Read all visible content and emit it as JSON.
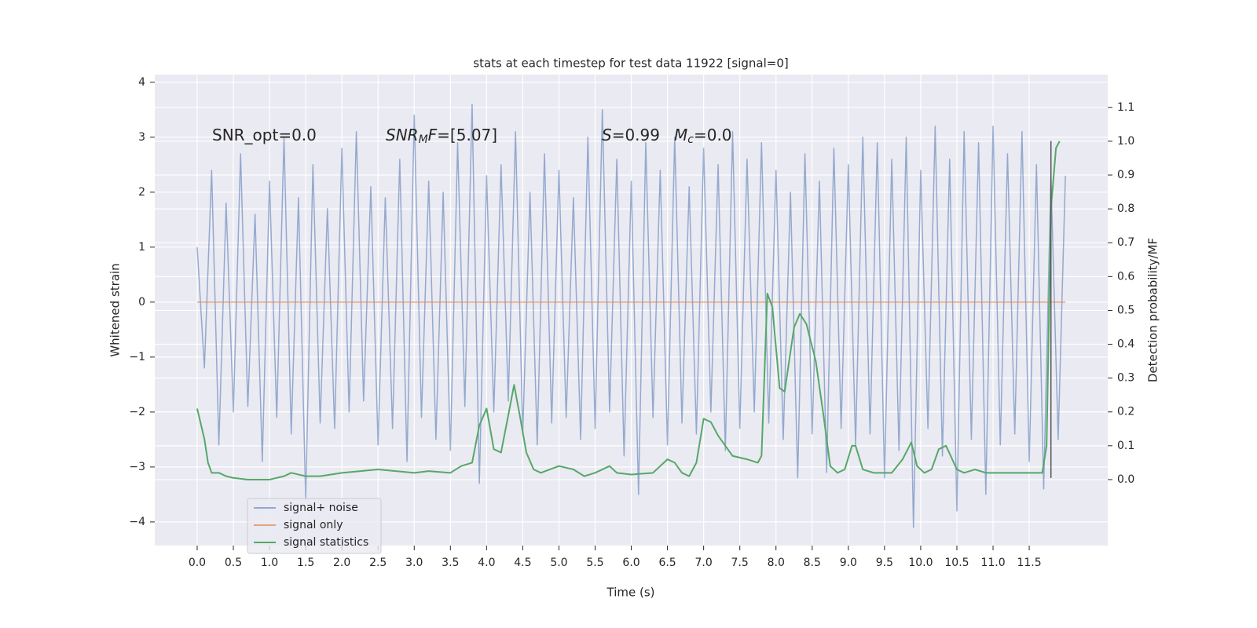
{
  "chart_data": {
    "type": "line",
    "title": "stats at each timestep for test data 11922 [signal=0]",
    "x_label": "Time (s)",
    "y_label": "Whitened strain",
    "y2_label": "Detection probability/MF",
    "xlim": [
      -0.586,
      12.585
    ],
    "ylim": [
      -4.43,
      4.14
    ],
    "y2lim": [
      -0.195,
      1.197
    ],
    "grid": true,
    "legend": "lower left",
    "xticks": [
      {
        "value": 0,
        "label": "0.0"
      },
      {
        "value": 0.5,
        "label": "0.5"
      },
      {
        "value": 1,
        "label": "1.0"
      },
      {
        "value": 1.5,
        "label": "1.5"
      },
      {
        "value": 2,
        "label": "2.0"
      },
      {
        "value": 2.5,
        "label": "2.5"
      },
      {
        "value": 3,
        "label": "3.0"
      },
      {
        "value": 3.5,
        "label": "3.5"
      },
      {
        "value": 4,
        "label": "4.0"
      },
      {
        "value": 4.5,
        "label": "4.5"
      },
      {
        "value": 5,
        "label": "5.0"
      },
      {
        "value": 5.5,
        "label": "5.5"
      },
      {
        "value": 6,
        "label": "6.0"
      },
      {
        "value": 6.5,
        "label": "6.5"
      },
      {
        "value": 7,
        "label": "7.0"
      },
      {
        "value": 7.5,
        "label": "7.5"
      },
      {
        "value": 8,
        "label": "8.0"
      },
      {
        "value": 8.5,
        "label": "8.5"
      },
      {
        "value": 9,
        "label": "9.0"
      },
      {
        "value": 9.5,
        "label": "9.5"
      },
      {
        "value": 10,
        "label": "10.0"
      },
      {
        "value": 10.5,
        "label": "10.5"
      },
      {
        "value": 11,
        "label": "11.0"
      },
      {
        "value": 11.5,
        "label": "11.5"
      }
    ],
    "yticks": [
      {
        "value": -4,
        "label": "−4"
      },
      {
        "value": -3,
        "label": "−3"
      },
      {
        "value": -2,
        "label": "−2"
      },
      {
        "value": -1,
        "label": "−1"
      },
      0,
      1,
      2,
      3,
      4
    ],
    "y2ticks": [
      {
        "value": 0,
        "label": "0.0"
      },
      {
        "value": 0.1,
        "label": "0.1"
      },
      {
        "value": 0.2,
        "label": "0.2"
      },
      {
        "value": 0.3,
        "label": "0.3"
      },
      {
        "value": 0.4,
        "label": "0.4"
      },
      {
        "value": 0.5,
        "label": "0.5"
      },
      {
        "value": 0.6,
        "label": "0.6"
      },
      {
        "value": 0.7,
        "label": "0.7"
      },
      {
        "value": 0.8,
        "label": "0.8"
      },
      {
        "value": 0.9,
        "label": "0.9"
      },
      {
        "value": 1,
        "label": "1.0"
      },
      {
        "value": 1.1,
        "label": "1.1"
      }
    ],
    "annotations": [
      {
        "parts": [
          {
            "text": "SNR_opt=0.0"
          }
        ]
      },
      {
        "parts": [
          {
            "text": "SNR",
            "style": "italic"
          },
          {
            "text": "M",
            "style": "sub"
          },
          {
            "text": "F",
            "style": "italic"
          },
          {
            "text": "=[5.07]"
          }
        ]
      },
      {
        "parts": [
          {
            "text": "S",
            "style": "italic"
          },
          {
            "text": "=0.99"
          }
        ]
      },
      {
        "parts": [
          {
            "text": "M",
            "style": "italic"
          },
          {
            "text": "c",
            "style": "sub"
          },
          {
            "text": "=0.0"
          }
        ]
      }
    ],
    "marker_line": {
      "x": 11.8,
      "y": [
        -3.2,
        2.93
      ],
      "color": "#555555"
    },
    "series": [
      {
        "name": "signal+ noise",
        "color": "#4c72b0",
        "alpha": 0.55,
        "axis": "y",
        "x": [
          0,
          0.1,
          0.2,
          0.3,
          0.4,
          0.5,
          0.6,
          0.7,
          0.8,
          0.9,
          1,
          1.1,
          1.2,
          1.3,
          1.4,
          1.5,
          1.6,
          1.7,
          1.8,
          1.9,
          2,
          2.1,
          2.2,
          2.3,
          2.4,
          2.5,
          2.6,
          2.7,
          2.8,
          2.9,
          3,
          3.1,
          3.2,
          3.3,
          3.4,
          3.5,
          3.6,
          3.7,
          3.8,
          3.9,
          4,
          4.1,
          4.2,
          4.3,
          4.4,
          4.5,
          4.6,
          4.7,
          4.8,
          4.9,
          5,
          5.1,
          5.2,
          5.3,
          5.4,
          5.5,
          5.6,
          5.7,
          5.8,
          5.9,
          6,
          6.1,
          6.2,
          6.3,
          6.4,
          6.5,
          6.6,
          6.7,
          6.8,
          6.9,
          7,
          7.1,
          7.2,
          7.3,
          7.4,
          7.5,
          7.6,
          7.7,
          7.8,
          7.9,
          8,
          8.1,
          8.2,
          8.3,
          8.4,
          8.5,
          8.6,
          8.7,
          8.8,
          8.9,
          9,
          9.1,
          9.2,
          9.3,
          9.4,
          9.5,
          9.6,
          9.7,
          9.8,
          9.9,
          10,
          10.1,
          10.2,
          10.3,
          10.4,
          10.5,
          10.6,
          10.7,
          10.8,
          10.9,
          11,
          11.1,
          11.2,
          11.3,
          11.4,
          11.5,
          11.6,
          11.7,
          11.8,
          11.9,
          12
        ],
        "values": [
          1.0,
          -1.2,
          2.4,
          -2.6,
          1.8,
          -2.0,
          2.7,
          -1.9,
          1.6,
          -2.9,
          2.2,
          -2.1,
          3.0,
          -2.4,
          1.9,
          -3.6,
          2.5,
          -2.2,
          1.7,
          -2.3,
          2.8,
          -2.0,
          3.1,
          -1.8,
          2.1,
          -2.6,
          1.9,
          -2.3,
          2.6,
          -2.9,
          3.4,
          -2.1,
          2.2,
          -2.5,
          2.0,
          -2.7,
          2.9,
          -1.9,
          3.6,
          -3.3,
          2.3,
          -2.0,
          2.5,
          -1.8,
          3.1,
          -2.4,
          2.0,
          -2.6,
          2.7,
          -2.2,
          2.4,
          -2.1,
          1.9,
          -2.5,
          3.0,
          -2.3,
          3.5,
          -2.0,
          2.6,
          -2.8,
          2.2,
          -3.5,
          2.9,
          -2.1,
          2.4,
          -2.6,
          3.0,
          -2.2,
          2.1,
          -2.4,
          2.8,
          -2.0,
          2.5,
          -2.7,
          3.1,
          -2.3,
          2.6,
          -2.0,
          2.9,
          -2.2,
          2.4,
          -2.5,
          2.0,
          -3.2,
          2.7,
          -2.4,
          2.2,
          -3.1,
          2.8,
          -2.3,
          2.5,
          -2.6,
          3.0,
          -2.4,
          2.9,
          -3.2,
          2.6,
          -2.7,
          3.0,
          -4.1,
          2.4,
          -2.3,
          3.2,
          -2.8,
          2.6,
          -3.8,
          3.1,
          -2.5,
          2.9,
          -3.5,
          3.2,
          -2.6,
          2.7,
          -2.4,
          3.1,
          -2.9,
          2.5,
          -3.4,
          2.3,
          -2.5,
          2.3
        ]
      },
      {
        "name": "signal only",
        "color": "#dd8452",
        "alpha": 0.7,
        "axis": "y",
        "x": [
          0,
          12
        ],
        "values": [
          0,
          0
        ]
      },
      {
        "name": "signal statistics",
        "color": "#55a868",
        "alpha": 1,
        "axis": "y2",
        "x": [
          0,
          0.1,
          0.15,
          0.2,
          0.3,
          0.4,
          0.5,
          0.7,
          1.0,
          1.2,
          1.3,
          1.5,
          1.7,
          2.0,
          2.5,
          3.0,
          3.2,
          3.5,
          3.65,
          3.8,
          3.9,
          4.0,
          4.1,
          4.2,
          4.3,
          4.38,
          4.45,
          4.55,
          4.65,
          4.75,
          5.0,
          5.2,
          5.35,
          5.5,
          5.7,
          5.8,
          6.0,
          6.3,
          6.5,
          6.6,
          6.7,
          6.8,
          6.9,
          7.0,
          7.1,
          7.2,
          7.4,
          7.6,
          7.75,
          7.8,
          7.88,
          7.95,
          8.05,
          8.12,
          8.25,
          8.33,
          8.42,
          8.55,
          8.65,
          8.75,
          8.85,
          8.95,
          9.05,
          9.1,
          9.2,
          9.35,
          9.6,
          9.75,
          9.87,
          9.95,
          10.05,
          10.15,
          10.25,
          10.35,
          10.5,
          10.6,
          10.75,
          10.9,
          11.1,
          11.3,
          11.5,
          11.68,
          11.74,
          11.8,
          11.87,
          11.92
        ],
        "values": [
          0.21,
          0.12,
          0.05,
          0.02,
          0.02,
          0.01,
          0.005,
          0.0,
          0.0,
          0.01,
          0.02,
          0.01,
          0.01,
          0.02,
          0.03,
          0.02,
          0.025,
          0.02,
          0.04,
          0.05,
          0.16,
          0.21,
          0.09,
          0.08,
          0.19,
          0.28,
          0.2,
          0.08,
          0.03,
          0.02,
          0.04,
          0.03,
          0.01,
          0.02,
          0.04,
          0.02,
          0.015,
          0.02,
          0.06,
          0.05,
          0.02,
          0.01,
          0.05,
          0.18,
          0.17,
          0.13,
          0.07,
          0.06,
          0.05,
          0.07,
          0.55,
          0.51,
          0.27,
          0.26,
          0.45,
          0.49,
          0.46,
          0.35,
          0.2,
          0.04,
          0.02,
          0.03,
          0.1,
          0.1,
          0.03,
          0.02,
          0.02,
          0.06,
          0.11,
          0.04,
          0.02,
          0.03,
          0.09,
          0.1,
          0.03,
          0.02,
          0.03,
          0.02,
          0.02,
          0.02,
          0.02,
          0.02,
          0.1,
          0.8,
          0.98,
          1.0
        ]
      }
    ]
  }
}
